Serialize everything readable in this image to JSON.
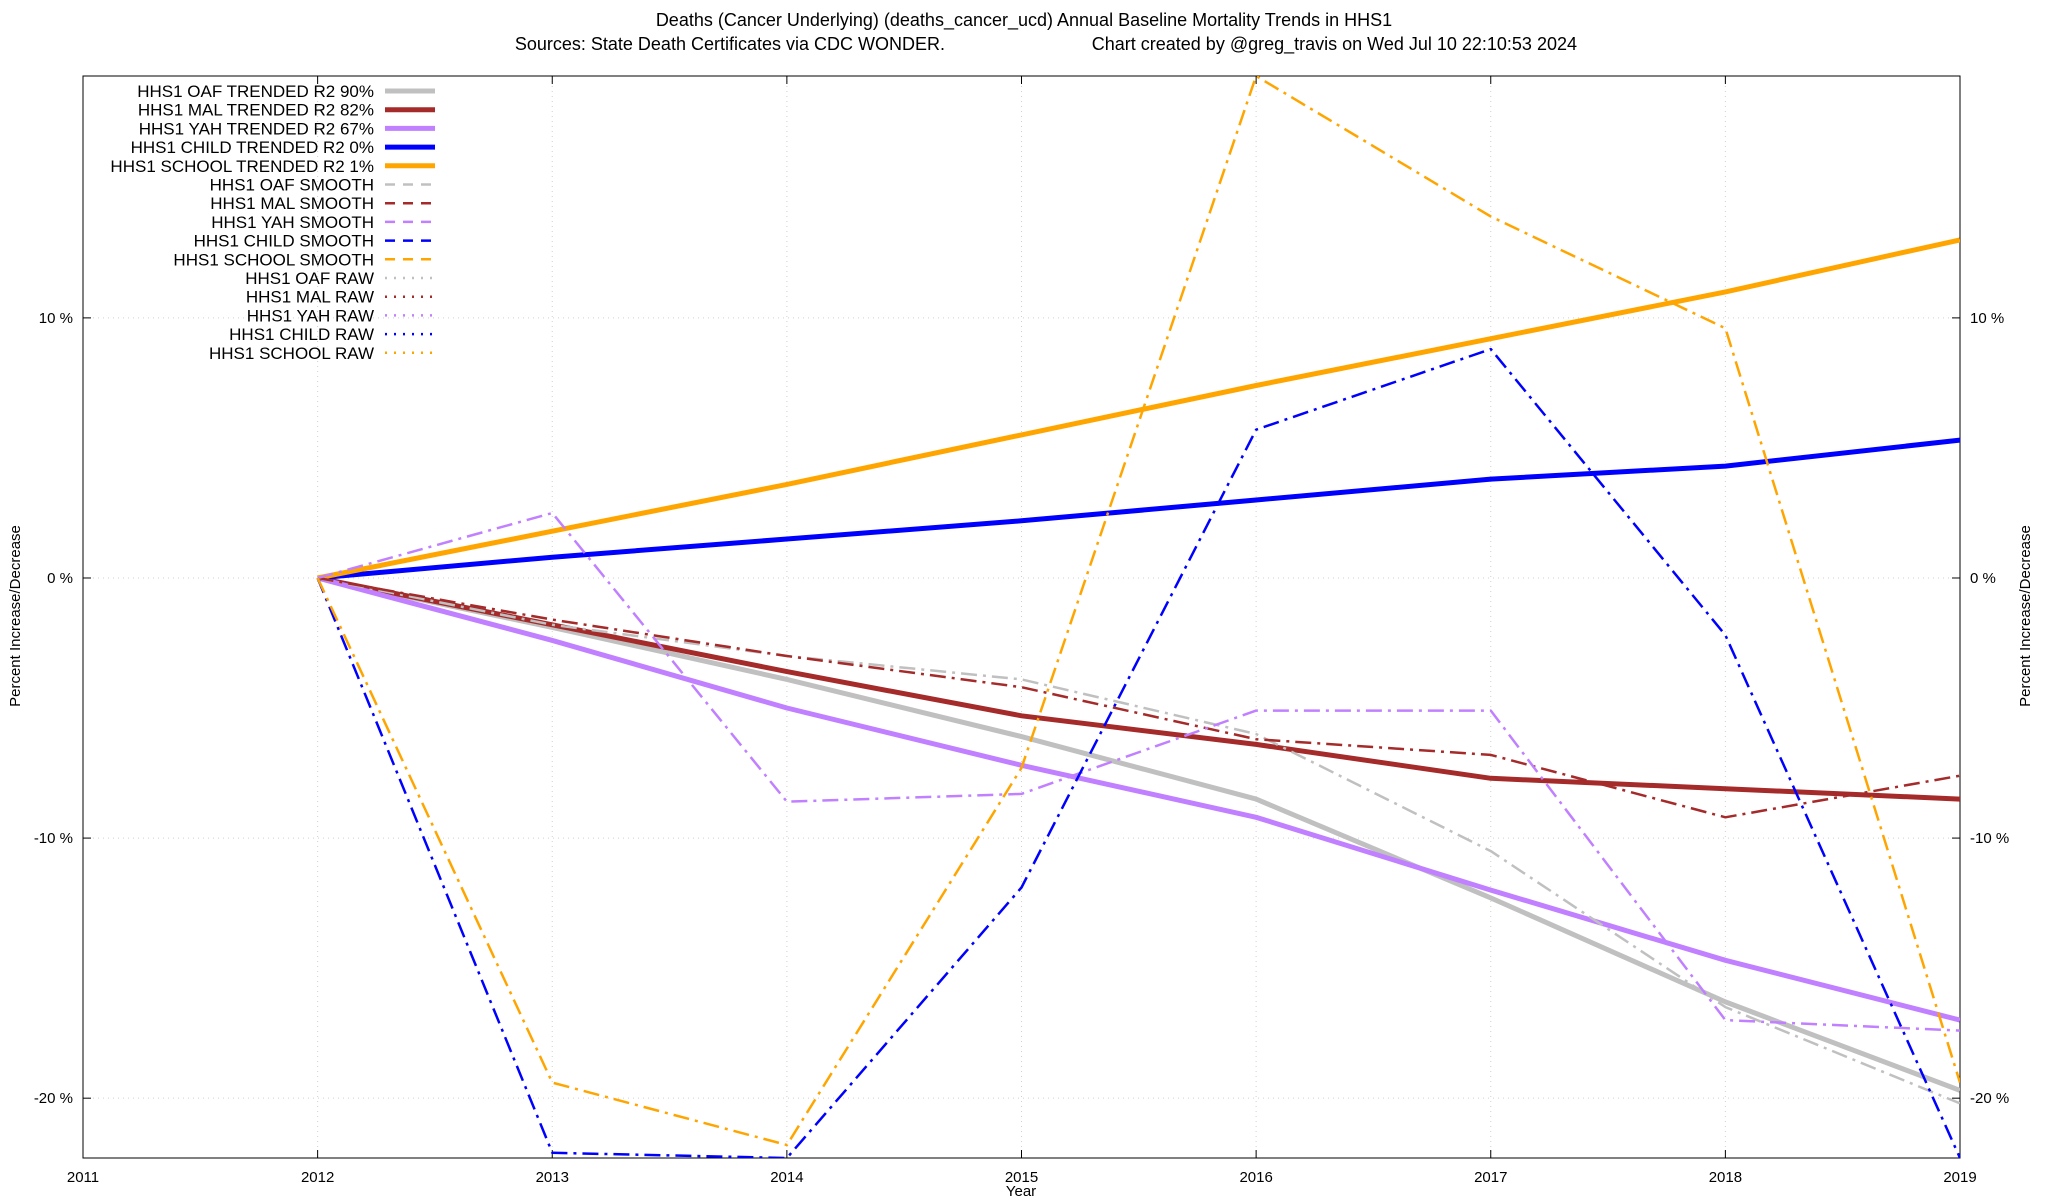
{
  "chart_data": {
    "type": "line",
    "title": "Deaths (Cancer Underlying) (deaths_cancer_ucd)  Annual Baseline Mortality Trends in HHS1",
    "subtitle_left": "Sources: State Death Certificates via CDC WONDER.",
    "subtitle_right": "Chart created by @greg_travis on Wed Jul 10 22:10:53 2024",
    "xlabel": "Year",
    "ylabel": "Percent Increase/Decrease",
    "xlim": [
      2011,
      2019
    ],
    "ylim": [
      -22.3,
      19.3
    ],
    "x_ticks": [
      {
        "value": 2011,
        "label": "2011"
      },
      {
        "value": 2012,
        "label": "2012"
      },
      {
        "value": 2013,
        "label": "2013"
      },
      {
        "value": 2014,
        "label": "2014"
      },
      {
        "value": 2015,
        "label": "2015"
      },
      {
        "value": 2016,
        "label": "2016"
      },
      {
        "value": 2017,
        "label": "2017"
      },
      {
        "value": 2018,
        "label": "2018"
      },
      {
        "value": 2019,
        "label": "2019"
      }
    ],
    "y_ticks": [
      {
        "value": 10,
        "label": "10 %"
      },
      {
        "value": 0,
        "label": "0 %"
      },
      {
        "value": -10,
        "label": "-10 %"
      },
      {
        "value": -20,
        "label": "-20 %"
      }
    ],
    "grid": true,
    "legend_position": "top-left",
    "series": [
      {
        "name": "HHS1 OAF TRENDED R2  90%",
        "style": "trended",
        "color": "#c0c0c0",
        "x": [
          2012,
          2013,
          2014,
          2015,
          2016,
          2017,
          2018,
          2019
        ],
        "y": [
          0,
          -1.9,
          -3.9,
          -6.1,
          -8.5,
          -12.3,
          -16.3,
          -19.7
        ]
      },
      {
        "name": "HHS1 MAL TRENDED R2  82%",
        "style": "trended",
        "color": "#a52a2a",
        "x": [
          2012,
          2013,
          2014,
          2015,
          2016,
          2017,
          2018,
          2019
        ],
        "y": [
          0,
          -1.8,
          -3.6,
          -5.3,
          -6.4,
          -7.7,
          -8.1,
          -8.5
        ]
      },
      {
        "name": "HHS1 YAH TRENDED R2  67%",
        "style": "trended",
        "color": "#c080ff",
        "x": [
          2012,
          2013,
          2014,
          2015,
          2016,
          2017,
          2018,
          2019
        ],
        "y": [
          0,
          -2.4,
          -5.0,
          -7.2,
          -9.2,
          -12.0,
          -14.7,
          -17.0
        ]
      },
      {
        "name": "HHS1 CHILD TRENDED R2   0%",
        "style": "trended",
        "color": "#0000ff",
        "x": [
          2012,
          2013,
          2014,
          2015,
          2016,
          2017,
          2018,
          2019
        ],
        "y": [
          0,
          0.8,
          1.5,
          2.2,
          3.0,
          3.8,
          4.3,
          5.3
        ]
      },
      {
        "name": "HHS1 SCHOOL TRENDED R2   1%",
        "style": "trended",
        "color": "#ffa500",
        "x": [
          2012,
          2013,
          2014,
          2015,
          2016,
          2017,
          2018,
          2019
        ],
        "y": [
          0,
          1.8,
          3.6,
          5.5,
          7.4,
          9.2,
          11.0,
          13.0
        ]
      },
      {
        "name": "HHS1 OAF SMOOTH",
        "style": "smooth",
        "color": "#c0c0c0",
        "x": [
          2012,
          2013,
          2014,
          2015,
          2016,
          2017,
          2018,
          2019
        ],
        "y": [
          0,
          -1.8,
          -3.0,
          -3.9,
          -6.0,
          -10.5,
          -16.5,
          -20.2
        ]
      },
      {
        "name": "HHS1 MAL SMOOTH",
        "style": "smooth",
        "color": "#a52a2a",
        "x": [
          2012,
          2013,
          2014,
          2015,
          2016,
          2017,
          2018,
          2019
        ],
        "y": [
          0,
          -1.6,
          -3.0,
          -4.2,
          -6.2,
          -6.8,
          -9.2,
          -7.6
        ]
      },
      {
        "name": "HHS1 YAH SMOOTH",
        "style": "smooth",
        "color": "#c080ff",
        "x": [
          2012,
          2013,
          2014,
          2015,
          2016,
          2017,
          2018,
          2019
        ],
        "y": [
          0,
          2.5,
          -8.6,
          -8.3,
          -5.1,
          -5.1,
          -17.0,
          -17.4
        ]
      },
      {
        "name": "HHS1 CHILD SMOOTH",
        "style": "smooth",
        "color": "#0000ff",
        "x": [
          2012,
          2013,
          2014,
          2015,
          2016,
          2017,
          2018,
          2019
        ],
        "y": [
          0,
          -22.1,
          -22.3,
          -11.9,
          5.7,
          8.8,
          -2.2,
          -22.3
        ]
      },
      {
        "name": "HHS1 SCHOOL SMOOTH",
        "style": "smooth",
        "color": "#ffa500",
        "x": [
          2012,
          2013,
          2014,
          2015,
          2016,
          2017,
          2018,
          2019
        ],
        "y": [
          0,
          -19.4,
          -21.8,
          -7.3,
          19.3,
          13.9,
          9.6,
          -19.4
        ]
      },
      {
        "name": "HHS1 OAF RAW",
        "style": "raw",
        "color": "#c0c0c0",
        "x": [],
        "y": []
      },
      {
        "name": "HHS1 MAL RAW",
        "style": "raw",
        "color": "#a52a2a",
        "x": [],
        "y": []
      },
      {
        "name": "HHS1 YAH RAW",
        "style": "raw",
        "color": "#c080ff",
        "x": [],
        "y": []
      },
      {
        "name": "HHS1 CHILD RAW",
        "style": "raw",
        "color": "#0000ff",
        "x": [],
        "y": []
      },
      {
        "name": "HHS1 SCHOOL RAW",
        "style": "raw",
        "color": "#ffa500",
        "x": [],
        "y": []
      }
    ]
  }
}
